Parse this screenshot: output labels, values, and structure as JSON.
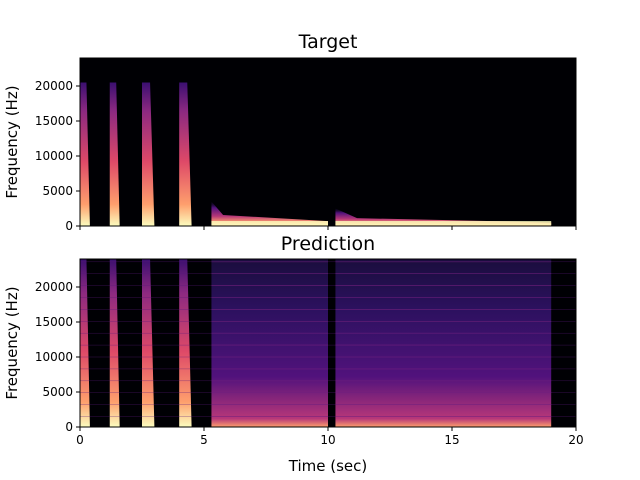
{
  "chart_data": [
    {
      "type": "heatmap",
      "title": "Target",
      "xlabel": "",
      "ylabel": "Frequency (Hz)",
      "xlim": [
        0,
        20
      ],
      "ylim": [
        0,
        24000
      ],
      "xticks": [
        0,
        5,
        10,
        15,
        20
      ],
      "xtick_labels_shown": false,
      "yticks": [
        0,
        5000,
        10000,
        15000,
        20000
      ],
      "ytick_labels": [
        "0",
        "5000",
        "10000",
        "15000",
        "20000"
      ],
      "colormap": "magma",
      "grid": false,
      "segments": [
        {
          "t_start": 0.0,
          "t_end": 0.4,
          "kind": "broadband",
          "f_max_hz": 20500
        },
        {
          "t_start": 1.2,
          "t_end": 1.6,
          "kind": "broadband",
          "f_max_hz": 20500
        },
        {
          "t_start": 2.5,
          "t_end": 3.0,
          "kind": "broadband",
          "f_max_hz": 20500
        },
        {
          "t_start": 4.0,
          "t_end": 4.5,
          "kind": "broadband",
          "f_max_hz": 20500
        },
        {
          "t_start": 5.3,
          "t_end": 10.0,
          "kind": "lowband",
          "f_max_hz": 3500
        },
        {
          "t_start": 10.3,
          "t_end": 19.0,
          "kind": "lowband",
          "f_max_hz": 2500
        }
      ]
    },
    {
      "type": "heatmap",
      "title": "Prediction",
      "xlabel": "Time (sec)",
      "ylabel": "Frequency (Hz)",
      "xlim": [
        0,
        20
      ],
      "ylim": [
        0,
        24000
      ],
      "xticks": [
        0,
        5,
        10,
        15,
        20
      ],
      "xtick_labels": [
        "0",
        "5",
        "10",
        "15",
        "20"
      ],
      "yticks": [
        0,
        5000,
        10000,
        15000,
        20000
      ],
      "ytick_labels": [
        "0",
        "5000",
        "10000",
        "15000",
        "20000"
      ],
      "colormap": "magma",
      "grid": false,
      "segments": [
        {
          "t_start": 0.0,
          "t_end": 0.4,
          "kind": "broadband",
          "f_max_hz": 24000
        },
        {
          "t_start": 1.2,
          "t_end": 1.6,
          "kind": "broadband",
          "f_max_hz": 24000
        },
        {
          "t_start": 2.5,
          "t_end": 3.0,
          "kind": "broadband",
          "f_max_hz": 24000
        },
        {
          "t_start": 4.0,
          "t_end": 4.5,
          "kind": "broadband",
          "f_max_hz": 24000
        },
        {
          "t_start": 5.3,
          "t_end": 10.0,
          "kind": "noisy",
          "f_max_hz": 24000
        },
        {
          "t_start": 10.3,
          "t_end": 19.0,
          "kind": "noisy",
          "f_max_hz": 24000
        }
      ]
    }
  ]
}
